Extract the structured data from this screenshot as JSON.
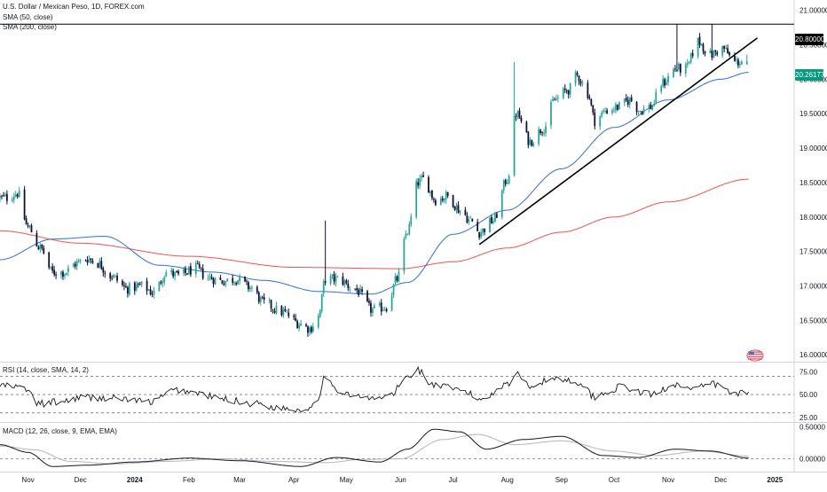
{
  "chart": {
    "title": "U.S. Dollar / Mexican Peso, 1D, FOREX.com",
    "sma50_label": "SMA (50, close)",
    "sma200_label": "SMA (200, close)",
    "rsi_label": "RSI (14, close, SMA, 14, 2)",
    "macd_label": "MACD (12, 26, close, 9, EMA, EMA)",
    "resistance_label": "20.80000",
    "last_price_label": "20.26177",
    "colors": {
      "up": "#26a69a",
      "down": "#0c0e3a",
      "sma50": "#2f6fd6",
      "sma200": "#ef5350",
      "trendline": "#000000",
      "resistance": "#000000",
      "last_price_bg": "#089981",
      "resistance_bg": "#000000",
      "rsi": "#131722",
      "macd": "#131722",
      "signal": "#b2b5be"
    }
  },
  "chart_data": [
    {
      "type": "candlestick",
      "y_ticks": [
        "21.00000",
        "20.50000",
        "20.00000",
        "19.50000",
        "19.00000",
        "18.50000",
        "18.00000",
        "17.50000",
        "17.00000",
        "16.50000",
        "16.00000"
      ],
      "ylim": [
        15.9,
        21.15
      ],
      "x_tick_labels": [
        "Nov",
        "Dec",
        "2024",
        "Feb",
        "Mar",
        "Apr",
        "May",
        "Jun",
        "Jul",
        "Aug",
        "Sep",
        "Oct",
        "Nov",
        "Dec",
        "2025"
      ],
      "anchors": [
        {
          "date": "2023-10-20",
          "close": 18.28
        },
        {
          "date": "2023-10-26",
          "close": 18.35
        },
        {
          "date": "2023-11-01",
          "close": 17.85
        },
        {
          "date": "2023-11-08",
          "close": 17.55
        },
        {
          "date": "2023-11-15",
          "close": 17.2
        },
        {
          "date": "2023-11-22",
          "close": 17.2
        },
        {
          "date": "2023-11-29",
          "close": 17.33
        },
        {
          "date": "2023-12-05",
          "close": 17.4
        },
        {
          "date": "2023-12-11",
          "close": 17.33
        },
        {
          "date": "2023-12-18",
          "close": 17.15
        },
        {
          "date": "2023-12-28",
          "close": 16.96
        },
        {
          "date": "2024-01-05",
          "close": 17.0
        },
        {
          "date": "2024-01-12",
          "close": 16.9
        },
        {
          "date": "2024-01-19",
          "close": 17.2
        },
        {
          "date": "2024-01-26",
          "close": 17.15
        },
        {
          "date": "2024-02-05",
          "close": 17.25
        },
        {
          "date": "2024-02-12",
          "close": 17.12
        },
        {
          "date": "2024-02-20",
          "close": 17.07
        },
        {
          "date": "2024-02-28",
          "close": 17.1
        },
        {
          "date": "2024-03-07",
          "close": 16.98
        },
        {
          "date": "2024-03-15",
          "close": 16.75
        },
        {
          "date": "2024-03-25",
          "close": 16.62
        },
        {
          "date": "2024-04-05",
          "close": 16.45
        },
        {
          "date": "2024-04-10",
          "close": 16.38
        },
        {
          "date": "2024-04-15",
          "close": 16.55
        },
        {
          "date": "2024-04-19",
          "close": 17.1
        },
        {
          "date": "2024-04-26",
          "close": 17.1
        },
        {
          "date": "2024-05-06",
          "close": 16.95
        },
        {
          "date": "2024-05-16",
          "close": 16.65
        },
        {
          "date": "2024-05-24",
          "close": 16.7
        },
        {
          "date": "2024-05-30",
          "close": 17.1
        },
        {
          "date": "2024-06-05",
          "close": 17.8
        },
        {
          "date": "2024-06-11",
          "close": 18.5
        },
        {
          "date": "2024-06-14",
          "close": 18.55
        },
        {
          "date": "2024-06-21",
          "close": 18.25
        },
        {
          "date": "2024-06-28",
          "close": 18.3
        },
        {
          "date": "2024-07-05",
          "close": 18.1
        },
        {
          "date": "2024-07-11",
          "close": 17.95
        },
        {
          "date": "2024-07-16",
          "close": 17.78
        },
        {
          "date": "2024-07-24",
          "close": 17.95
        },
        {
          "date": "2024-08-01",
          "close": 18.55
        },
        {
          "date": "2024-08-06",
          "close": 19.5
        },
        {
          "date": "2024-08-14",
          "close": 19.1
        },
        {
          "date": "2024-08-22",
          "close": 19.3
        },
        {
          "date": "2024-08-28",
          "close": 19.7
        },
        {
          "date": "2024-09-05",
          "close": 19.85
        },
        {
          "date": "2024-09-10",
          "close": 20.05
        },
        {
          "date": "2024-09-16",
          "close": 19.8
        },
        {
          "date": "2024-09-20",
          "close": 19.4
        },
        {
          "date": "2024-09-27",
          "close": 19.55
        },
        {
          "date": "2024-10-04",
          "close": 19.6
        },
        {
          "date": "2024-10-10",
          "close": 19.7
        },
        {
          "date": "2024-10-16",
          "close": 19.55
        },
        {
          "date": "2024-10-22",
          "close": 19.6
        },
        {
          "date": "2024-10-29",
          "close": 19.95
        },
        {
          "date": "2024-11-05",
          "close": 20.15
        },
        {
          "date": "2024-11-11",
          "close": 20.15
        },
        {
          "date": "2024-11-18",
          "close": 20.55
        },
        {
          "date": "2024-11-25",
          "close": 20.35
        },
        {
          "date": "2024-12-02",
          "close": 20.45
        },
        {
          "date": "2024-12-09",
          "close": 20.25
        },
        {
          "date": "2024-12-16",
          "close": 20.26
        }
      ],
      "spikes": [
        {
          "date": "2024-04-19",
          "high": 17.95
        },
        {
          "date": "2024-08-05",
          "high": 20.25
        },
        {
          "date": "2024-11-06",
          "high": 20.8
        },
        {
          "date": "2024-11-26",
          "high": 20.8
        }
      ],
      "sma50_anchors": [
        {
          "date": "2023-10-16",
          "value": 17.38
        },
        {
          "date": "2023-11-15",
          "value": 17.68
        },
        {
          "date": "2023-12-15",
          "value": 17.72
        },
        {
          "date": "2024-01-15",
          "value": 17.3
        },
        {
          "date": "2024-02-15",
          "value": 17.2
        },
        {
          "date": "2024-03-15",
          "value": 17.08
        },
        {
          "date": "2024-04-15",
          "value": 16.92
        },
        {
          "date": "2024-05-15",
          "value": 16.88
        },
        {
          "date": "2024-06-05",
          "value": 17.05
        },
        {
          "date": "2024-07-01",
          "value": 17.75
        },
        {
          "date": "2024-08-01",
          "value": 18.1
        },
        {
          "date": "2024-09-01",
          "value": 18.7
        },
        {
          "date": "2024-10-01",
          "value": 19.3
        },
        {
          "date": "2024-11-01",
          "value": 19.7
        },
        {
          "date": "2024-12-01",
          "value": 20.0
        },
        {
          "date": "2024-12-17",
          "value": 20.1
        }
      ],
      "sma200_anchors": [
        {
          "date": "2023-10-16",
          "value": 17.8
        },
        {
          "date": "2023-12-01",
          "value": 17.62
        },
        {
          "date": "2024-02-01",
          "value": 17.43
        },
        {
          "date": "2024-04-01",
          "value": 17.27
        },
        {
          "date": "2024-06-01",
          "value": 17.25
        },
        {
          "date": "2024-07-01",
          "value": 17.35
        },
        {
          "date": "2024-08-01",
          "value": 17.55
        },
        {
          "date": "2024-09-01",
          "value": 17.78
        },
        {
          "date": "2024-10-01",
          "value": 18.0
        },
        {
          "date": "2024-11-01",
          "value": 18.22
        },
        {
          "date": "2024-12-17",
          "value": 18.55
        }
      ],
      "trendline": {
        "start": {
          "date": "2024-07-16",
          "value": 17.6
        },
        "end": {
          "date": "2024-12-22",
          "value": 20.6
        }
      },
      "resistance_level": 20.8,
      "last_price": 20.26177
    },
    {
      "type": "line",
      "name": "RSI",
      "y_ticks": [
        "75.00",
        "50.00",
        "25.00"
      ],
      "ylim": [
        20,
        85
      ],
      "levels": [
        70,
        50,
        30
      ],
      "anchors": [
        {
          "date": "2023-10-16",
          "value": 60
        },
        {
          "date": "2023-10-30",
          "value": 57
        },
        {
          "date": "2023-11-07",
          "value": 40
        },
        {
          "date": "2023-11-20",
          "value": 42
        },
        {
          "date": "2023-12-01",
          "value": 47
        },
        {
          "date": "2023-12-20",
          "value": 46
        },
        {
          "date": "2024-01-10",
          "value": 42
        },
        {
          "date": "2024-01-25",
          "value": 55
        },
        {
          "date": "2024-02-05",
          "value": 52
        },
        {
          "date": "2024-02-20",
          "value": 45
        },
        {
          "date": "2024-03-10",
          "value": 40
        },
        {
          "date": "2024-03-25",
          "value": 35
        },
        {
          "date": "2024-04-08",
          "value": 33
        },
        {
          "date": "2024-04-15",
          "value": 48
        },
        {
          "date": "2024-04-19",
          "value": 72
        },
        {
          "date": "2024-04-24",
          "value": 55
        },
        {
          "date": "2024-05-15",
          "value": 45
        },
        {
          "date": "2024-05-25",
          "value": 48
        },
        {
          "date": "2024-06-06",
          "value": 70
        },
        {
          "date": "2024-06-10",
          "value": 78
        },
        {
          "date": "2024-06-20",
          "value": 60
        },
        {
          "date": "2024-07-05",
          "value": 55
        },
        {
          "date": "2024-07-17",
          "value": 45
        },
        {
          "date": "2024-08-01",
          "value": 62
        },
        {
          "date": "2024-08-06",
          "value": 72
        },
        {
          "date": "2024-08-15",
          "value": 60
        },
        {
          "date": "2024-08-28",
          "value": 68
        },
        {
          "date": "2024-09-10",
          "value": 64
        },
        {
          "date": "2024-09-20",
          "value": 48
        },
        {
          "date": "2024-10-05",
          "value": 58
        },
        {
          "date": "2024-10-22",
          "value": 50
        },
        {
          "date": "2024-11-06",
          "value": 62
        },
        {
          "date": "2024-11-15",
          "value": 55
        },
        {
          "date": "2024-11-26",
          "value": 62
        },
        {
          "date": "2024-12-08",
          "value": 52
        },
        {
          "date": "2024-12-17",
          "value": 52
        }
      ]
    },
    {
      "type": "line",
      "name": "MACD",
      "y_ticks": [
        "0.50000",
        "0.00000"
      ],
      "ylim": [
        -0.2,
        0.56
      ],
      "zero_level": 0,
      "macd_anchors": [
        {
          "date": "2023-10-16",
          "value": 0.22
        },
        {
          "date": "2023-11-01",
          "value": 0.1
        },
        {
          "date": "2023-11-15",
          "value": -0.12
        },
        {
          "date": "2023-12-05",
          "value": -0.1
        },
        {
          "date": "2024-01-01",
          "value": -0.05
        },
        {
          "date": "2024-02-01",
          "value": 0.01
        },
        {
          "date": "2024-03-01",
          "value": -0.03
        },
        {
          "date": "2024-04-05",
          "value": -0.12
        },
        {
          "date": "2024-04-25",
          "value": 0.02
        },
        {
          "date": "2024-05-20",
          "value": -0.05
        },
        {
          "date": "2024-06-05",
          "value": 0.15
        },
        {
          "date": "2024-06-20",
          "value": 0.46
        },
        {
          "date": "2024-07-05",
          "value": 0.42
        },
        {
          "date": "2024-07-20",
          "value": 0.15
        },
        {
          "date": "2024-08-10",
          "value": 0.3
        },
        {
          "date": "2024-09-01",
          "value": 0.35
        },
        {
          "date": "2024-09-25",
          "value": 0.05
        },
        {
          "date": "2024-10-15",
          "value": 0.02
        },
        {
          "date": "2024-11-05",
          "value": 0.15
        },
        {
          "date": "2024-11-25",
          "value": 0.12
        },
        {
          "date": "2024-12-17",
          "value": 0.01
        }
      ],
      "signal_anchors": [
        {
          "date": "2023-10-16",
          "value": 0.2
        },
        {
          "date": "2023-11-05",
          "value": 0.14
        },
        {
          "date": "2023-11-25",
          "value": -0.04
        },
        {
          "date": "2023-12-20",
          "value": -0.08
        },
        {
          "date": "2024-01-20",
          "value": -0.04
        },
        {
          "date": "2024-02-20",
          "value": 0.0
        },
        {
          "date": "2024-03-20",
          "value": -0.04
        },
        {
          "date": "2024-04-20",
          "value": -0.06
        },
        {
          "date": "2024-05-10",
          "value": -0.01
        },
        {
          "date": "2024-06-01",
          "value": 0.0
        },
        {
          "date": "2024-06-25",
          "value": 0.3
        },
        {
          "date": "2024-07-15",
          "value": 0.38
        },
        {
          "date": "2024-08-05",
          "value": 0.22
        },
        {
          "date": "2024-09-01",
          "value": 0.28
        },
        {
          "date": "2024-10-01",
          "value": 0.12
        },
        {
          "date": "2024-10-25",
          "value": 0.05
        },
        {
          "date": "2024-11-20",
          "value": 0.12
        },
        {
          "date": "2024-12-17",
          "value": 0.04
        }
      ]
    }
  ]
}
